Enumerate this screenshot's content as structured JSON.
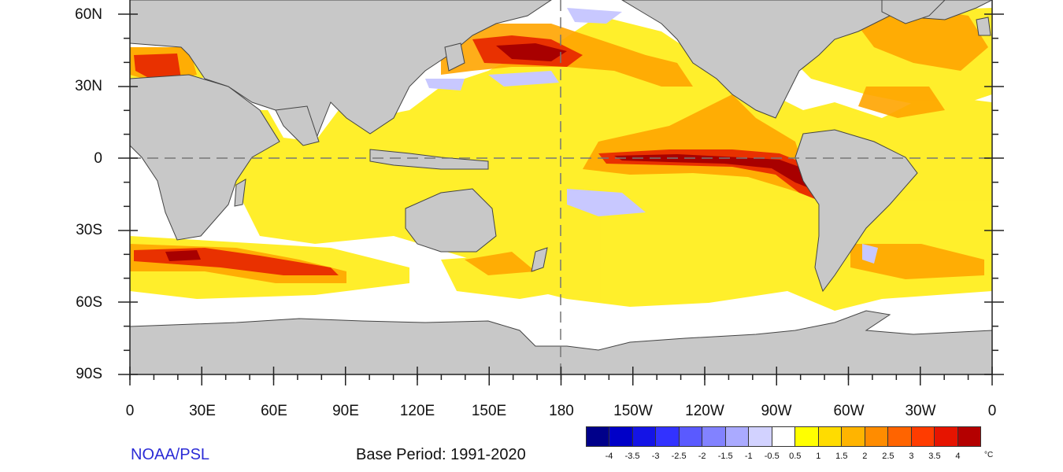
{
  "map": {
    "type": "global sea surface temperature anomaly",
    "projection": "cylindrical equidistant",
    "latitude_labels": [
      "60N",
      "30N",
      "0",
      "30S",
      "60S",
      "90S"
    ],
    "longitude_labels": [
      "0",
      "30E",
      "60E",
      "90E",
      "120E",
      "150E",
      "180",
      "150W",
      "120W",
      "90W",
      "60W",
      "30W",
      "0"
    ],
    "reference_lines": [
      "equator dashed",
      "dateline dashed"
    ],
    "land_color": "#c8c8c8",
    "ocean_zero_color": "#ffffff",
    "notable_features": [
      "strong warm anomaly along equatorial eastern Pacific (El Nino pattern)",
      "warm anomaly in North Pacific near 40N",
      "warm anomaly off west coast of South America",
      "patchy warm anomalies across Southern Ocean near 40S"
    ]
  },
  "footer": {
    "credit": "NOAA/PSL",
    "base_period": "Base Period: 1991-2020"
  },
  "colorbar": {
    "labels": [
      "-4",
      "-3.5",
      "-3",
      "-2.5",
      "-2",
      "-1.5",
      "-1",
      "-0.5",
      "0.5",
      "1",
      "1.5",
      "2",
      "2.5",
      "3",
      "3.5",
      "4"
    ],
    "units": "°C",
    "colors": [
      "#00008a",
      "#0000c8",
      "#1414e6",
      "#3232ff",
      "#5a5aff",
      "#8282ff",
      "#aaaaff",
      "#d2d2ff",
      "#ffffff",
      "#ffff00",
      "#ffdc00",
      "#ffb400",
      "#ff8c00",
      "#ff6400",
      "#ff3c00",
      "#e61400",
      "#b40000"
    ]
  }
}
